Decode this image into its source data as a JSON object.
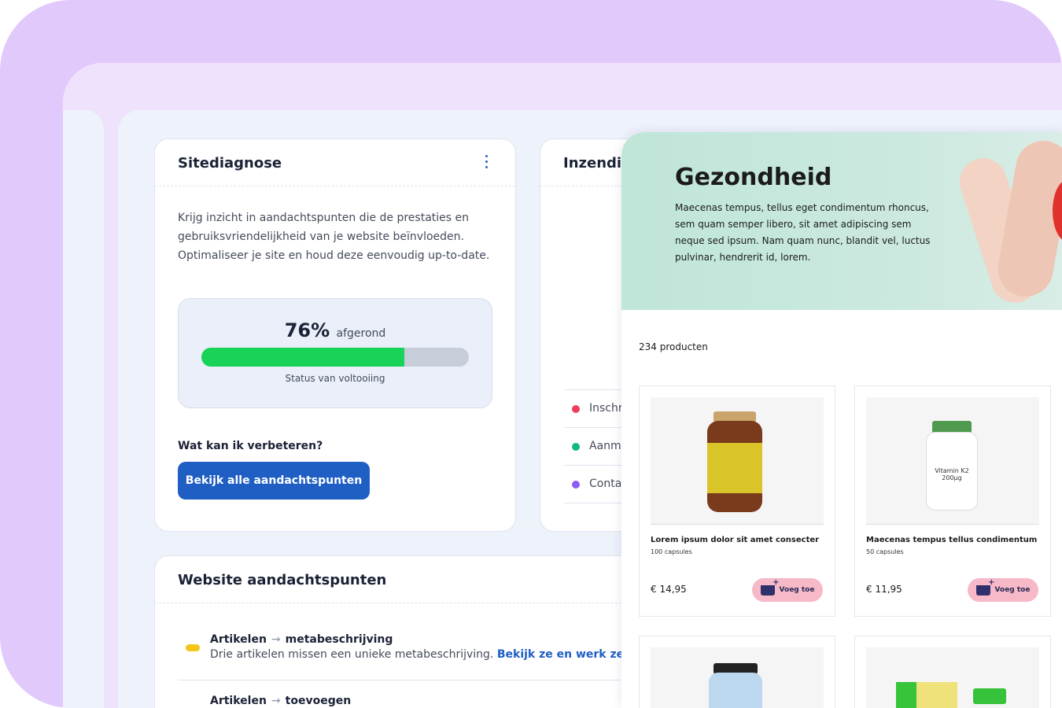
{
  "sitediagnose": {
    "title": "Sitediagnose",
    "description": "Krijg inzicht in aandachtspunten die de prestaties en gebruiksvriendelijkheid van je website beïnvloeden. Optimaliseer je site en houd deze eenvoudig up-to-date.",
    "progress_percent": 76,
    "progress_value": "76%",
    "progress_suffix": "afgerond",
    "progress_label": "Status van voltooiing",
    "improve_heading": "Wat kan ik verbeteren?",
    "button_label": "Bekijk alle aandachtspunten",
    "progress_color": "#19d359",
    "button_color": "#1f5fc4"
  },
  "inzendingen": {
    "title": "Inzendin",
    "legend": [
      {
        "label": "Inschr",
        "color": "#ef3e5c"
      },
      {
        "label": "Aanm",
        "color": "#13b77f"
      },
      {
        "label": "Conta",
        "color": "#8b5cf6"
      }
    ]
  },
  "aandachtspunten": {
    "title": "Website aandachtspunten",
    "items": [
      {
        "category": "Artikelen",
        "arrow": "→",
        "topic": "metabeschrijving",
        "description": "Drie artikelen missen een unieke metabeschrijving.",
        "link": "Bekijk ze en werk ze bij."
      },
      {
        "category": "Artikelen",
        "arrow": "→",
        "topic": "toevoegen"
      }
    ]
  },
  "shop": {
    "hero_title": "Gezondheid",
    "hero_text": "Maecenas tempus, tellus eget condimentum rhoncus, sem quam semper libero, sit amet adipiscing sem neque sed ipsum. Nam quam nunc, blandit vel, luctus pulvinar, hendrerit id, lorem.",
    "count": "234 producten",
    "products": [
      {
        "name": "Lorem ipsum dolor sit amet consecter",
        "sub": "100 capsules",
        "price": "€ 14,95",
        "button": "Voeg toe"
      },
      {
        "name": "Maecenas tempus tellus condimentum",
        "sub": "50 capsules",
        "price": "€ 11,95",
        "button": "Voeg toe"
      }
    ]
  }
}
